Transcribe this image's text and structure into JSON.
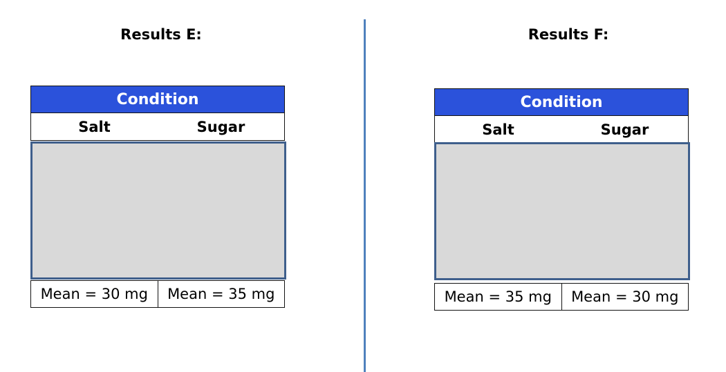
{
  "panels": [
    {
      "title": "Results E:",
      "header": "Condition",
      "columns": [
        "Salt",
        "Sugar"
      ],
      "means": [
        "Mean = 30 mg",
        "Mean = 35 mg"
      ]
    },
    {
      "title": "Results F:",
      "header": "Condition",
      "columns": [
        "Salt",
        "Sugar"
      ],
      "means": [
        "Mean = 35 mg",
        "Mean = 30 mg"
      ]
    }
  ],
  "colors": {
    "header_fill": "#2b52db",
    "gray_box_fill": "#d9d9d9",
    "gray_box_border": "#3f5f8c",
    "divider": "#4f81bd"
  }
}
